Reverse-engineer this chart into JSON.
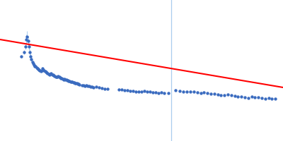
{
  "background_color": "#ffffff",
  "line_color": "#ff0000",
  "dot_color": "#3a6bbf",
  "error_color": "#aaccee",
  "vline_color": "#aaccee",
  "xlim": [
    0.0,
    1.0
  ],
  "ylim": [
    0.0,
    1.0
  ],
  "line_x": [
    0.0,
    1.0
  ],
  "line_y": [
    0.72,
    0.38
  ],
  "vline_x": 0.605,
  "scatter_data": [
    [
      0.075,
      0.6
    ],
    [
      0.085,
      0.63
    ],
    [
      0.09,
      0.67
    ],
    [
      0.093,
      0.72
    ],
    [
      0.096,
      0.74
    ],
    [
      0.099,
      0.71
    ],
    [
      0.102,
      0.67
    ],
    [
      0.105,
      0.63
    ],
    [
      0.108,
      0.6
    ],
    [
      0.111,
      0.58
    ],
    [
      0.114,
      0.56
    ],
    [
      0.117,
      0.55
    ],
    [
      0.12,
      0.54
    ],
    [
      0.123,
      0.53
    ],
    [
      0.126,
      0.53
    ],
    [
      0.129,
      0.52
    ],
    [
      0.132,
      0.515
    ],
    [
      0.135,
      0.51
    ],
    [
      0.138,
      0.505
    ],
    [
      0.141,
      0.5
    ],
    [
      0.144,
      0.495
    ],
    [
      0.147,
      0.5
    ],
    [
      0.15,
      0.515
    ],
    [
      0.153,
      0.505
    ],
    [
      0.156,
      0.498
    ],
    [
      0.159,
      0.493
    ],
    [
      0.162,
      0.488
    ],
    [
      0.165,
      0.483
    ],
    [
      0.168,
      0.478
    ],
    [
      0.172,
      0.475
    ],
    [
      0.175,
      0.472
    ],
    [
      0.178,
      0.475
    ],
    [
      0.181,
      0.478
    ],
    [
      0.184,
      0.472
    ],
    [
      0.187,
      0.468
    ],
    [
      0.19,
      0.464
    ],
    [
      0.193,
      0.46
    ],
    [
      0.197,
      0.457
    ],
    [
      0.2,
      0.453
    ],
    [
      0.203,
      0.455
    ],
    [
      0.206,
      0.46
    ],
    [
      0.209,
      0.455
    ],
    [
      0.212,
      0.45
    ],
    [
      0.215,
      0.447
    ],
    [
      0.218,
      0.443
    ],
    [
      0.222,
      0.44
    ],
    [
      0.225,
      0.437
    ],
    [
      0.228,
      0.44
    ],
    [
      0.231,
      0.437
    ],
    [
      0.234,
      0.434
    ],
    [
      0.237,
      0.431
    ],
    [
      0.24,
      0.428
    ],
    [
      0.243,
      0.426
    ],
    [
      0.246,
      0.423
    ],
    [
      0.25,
      0.42
    ],
    [
      0.253,
      0.422
    ],
    [
      0.256,
      0.42
    ],
    [
      0.259,
      0.417
    ],
    [
      0.262,
      0.415
    ],
    [
      0.265,
      0.412
    ],
    [
      0.268,
      0.41
    ],
    [
      0.272,
      0.408
    ],
    [
      0.275,
      0.406
    ],
    [
      0.278,
      0.403
    ],
    [
      0.281,
      0.4
    ],
    [
      0.29,
      0.397
    ],
    [
      0.295,
      0.395
    ],
    [
      0.3,
      0.392
    ],
    [
      0.305,
      0.395
    ],
    [
      0.31,
      0.392
    ],
    [
      0.315,
      0.389
    ],
    [
      0.32,
      0.386
    ],
    [
      0.325,
      0.383
    ],
    [
      0.33,
      0.38
    ],
    [
      0.34,
      0.383
    ],
    [
      0.35,
      0.38
    ],
    [
      0.36,
      0.376
    ],
    [
      0.37,
      0.372
    ],
    [
      0.38,
      0.37
    ],
    [
      0.42,
      0.367
    ],
    [
      0.43,
      0.365
    ],
    [
      0.44,
      0.362
    ],
    [
      0.45,
      0.36
    ],
    [
      0.46,
      0.357
    ],
    [
      0.47,
      0.355
    ],
    [
      0.48,
      0.352
    ],
    [
      0.49,
      0.35
    ],
    [
      0.5,
      0.348
    ],
    [
      0.51,
      0.355
    ],
    [
      0.52,
      0.352
    ],
    [
      0.53,
      0.349
    ],
    [
      0.54,
      0.346
    ],
    [
      0.55,
      0.343
    ],
    [
      0.56,
      0.34
    ],
    [
      0.57,
      0.345
    ],
    [
      0.58,
      0.342
    ],
    [
      0.595,
      0.339
    ],
    [
      0.62,
      0.36
    ],
    [
      0.635,
      0.355
    ],
    [
      0.648,
      0.352
    ],
    [
      0.66,
      0.348
    ],
    [
      0.672,
      0.352
    ],
    [
      0.684,
      0.349
    ],
    [
      0.697,
      0.346
    ],
    [
      0.709,
      0.342
    ],
    [
      0.721,
      0.345
    ],
    [
      0.733,
      0.34
    ],
    [
      0.745,
      0.337
    ],
    [
      0.757,
      0.334
    ],
    [
      0.769,
      0.33
    ],
    [
      0.781,
      0.327
    ],
    [
      0.793,
      0.324
    ],
    [
      0.805,
      0.328
    ],
    [
      0.817,
      0.324
    ],
    [
      0.829,
      0.32
    ],
    [
      0.841,
      0.317
    ],
    [
      0.853,
      0.313
    ],
    [
      0.865,
      0.31
    ],
    [
      0.877,
      0.307
    ],
    [
      0.889,
      0.315
    ],
    [
      0.901,
      0.311
    ],
    [
      0.913,
      0.308
    ],
    [
      0.925,
      0.304
    ],
    [
      0.937,
      0.301
    ],
    [
      0.949,
      0.305
    ],
    [
      0.961,
      0.301
    ],
    [
      0.972,
      0.298
    ]
  ],
  "error_bars": [
    [
      0.075,
      0.012
    ],
    [
      0.085,
      0.015
    ],
    [
      0.09,
      0.02
    ],
    [
      0.093,
      0.035
    ],
    [
      0.096,
      0.04
    ],
    [
      0.099,
      0.035
    ],
    [
      0.102,
      0.025
    ],
    [
      0.105,
      0.02
    ],
    [
      0.108,
      0.018
    ],
    [
      0.111,
      0.015
    ],
    [
      0.114,
      0.013
    ],
    [
      0.117,
      0.012
    ],
    [
      0.12,
      0.011
    ],
    [
      0.123,
      0.01
    ],
    [
      0.126,
      0.01
    ],
    [
      0.129,
      0.009
    ],
    [
      0.132,
      0.009
    ],
    [
      0.135,
      0.008
    ],
    [
      0.138,
      0.008
    ],
    [
      0.141,
      0.008
    ],
    [
      0.144,
      0.007
    ],
    [
      0.147,
      0.008
    ],
    [
      0.15,
      0.01
    ],
    [
      0.153,
      0.009
    ],
    [
      0.156,
      0.008
    ],
    [
      0.159,
      0.008
    ],
    [
      0.162,
      0.007
    ],
    [
      0.165,
      0.007
    ],
    [
      0.168,
      0.007
    ],
    [
      0.172,
      0.006
    ],
    [
      0.175,
      0.006
    ],
    [
      0.178,
      0.007
    ],
    [
      0.181,
      0.007
    ],
    [
      0.184,
      0.007
    ],
    [
      0.187,
      0.006
    ],
    [
      0.19,
      0.006
    ],
    [
      0.193,
      0.006
    ],
    [
      0.197,
      0.006
    ],
    [
      0.2,
      0.006
    ],
    [
      0.203,
      0.006
    ],
    [
      0.206,
      0.006
    ],
    [
      0.209,
      0.006
    ],
    [
      0.212,
      0.005
    ],
    [
      0.215,
      0.005
    ],
    [
      0.218,
      0.005
    ],
    [
      0.222,
      0.005
    ],
    [
      0.225,
      0.005
    ],
    [
      0.228,
      0.006
    ],
    [
      0.231,
      0.005
    ],
    [
      0.234,
      0.005
    ],
    [
      0.237,
      0.005
    ],
    [
      0.24,
      0.005
    ],
    [
      0.243,
      0.005
    ],
    [
      0.246,
      0.005
    ],
    [
      0.25,
      0.005
    ],
    [
      0.253,
      0.005
    ],
    [
      0.256,
      0.005
    ],
    [
      0.259,
      0.004
    ],
    [
      0.262,
      0.004
    ],
    [
      0.265,
      0.004
    ],
    [
      0.268,
      0.004
    ],
    [
      0.272,
      0.004
    ],
    [
      0.275,
      0.004
    ],
    [
      0.278,
      0.004
    ],
    [
      0.281,
      0.004
    ],
    [
      0.29,
      0.004
    ],
    [
      0.295,
      0.004
    ],
    [
      0.3,
      0.004
    ],
    [
      0.305,
      0.004
    ],
    [
      0.31,
      0.004
    ],
    [
      0.315,
      0.004
    ],
    [
      0.32,
      0.004
    ],
    [
      0.325,
      0.004
    ],
    [
      0.33,
      0.004
    ],
    [
      0.34,
      0.004
    ],
    [
      0.35,
      0.004
    ],
    [
      0.36,
      0.004
    ],
    [
      0.37,
      0.004
    ],
    [
      0.38,
      0.004
    ],
    [
      0.42,
      0.005
    ],
    [
      0.43,
      0.005
    ],
    [
      0.44,
      0.005
    ],
    [
      0.45,
      0.005
    ],
    [
      0.46,
      0.005
    ],
    [
      0.47,
      0.005
    ],
    [
      0.48,
      0.005
    ],
    [
      0.49,
      0.005
    ],
    [
      0.5,
      0.005
    ],
    [
      0.51,
      0.005
    ],
    [
      0.52,
      0.005
    ],
    [
      0.53,
      0.005
    ],
    [
      0.54,
      0.005
    ],
    [
      0.55,
      0.005
    ],
    [
      0.56,
      0.005
    ],
    [
      0.57,
      0.005
    ],
    [
      0.58,
      0.005
    ],
    [
      0.595,
      0.005
    ],
    [
      0.62,
      0.007
    ],
    [
      0.635,
      0.007
    ],
    [
      0.648,
      0.007
    ],
    [
      0.66,
      0.006
    ],
    [
      0.672,
      0.006
    ],
    [
      0.684,
      0.006
    ],
    [
      0.697,
      0.006
    ],
    [
      0.709,
      0.006
    ],
    [
      0.721,
      0.006
    ],
    [
      0.733,
      0.006
    ],
    [
      0.745,
      0.006
    ],
    [
      0.757,
      0.006
    ],
    [
      0.769,
      0.005
    ],
    [
      0.781,
      0.005
    ],
    [
      0.793,
      0.005
    ],
    [
      0.805,
      0.005
    ],
    [
      0.817,
      0.005
    ],
    [
      0.829,
      0.005
    ],
    [
      0.841,
      0.005
    ],
    [
      0.853,
      0.005
    ],
    [
      0.865,
      0.005
    ],
    [
      0.877,
      0.005
    ],
    [
      0.889,
      0.005
    ],
    [
      0.901,
      0.005
    ],
    [
      0.913,
      0.005
    ],
    [
      0.925,
      0.005
    ],
    [
      0.937,
      0.005
    ],
    [
      0.949,
      0.005
    ],
    [
      0.961,
      0.005
    ],
    [
      0.972,
      0.005
    ]
  ]
}
